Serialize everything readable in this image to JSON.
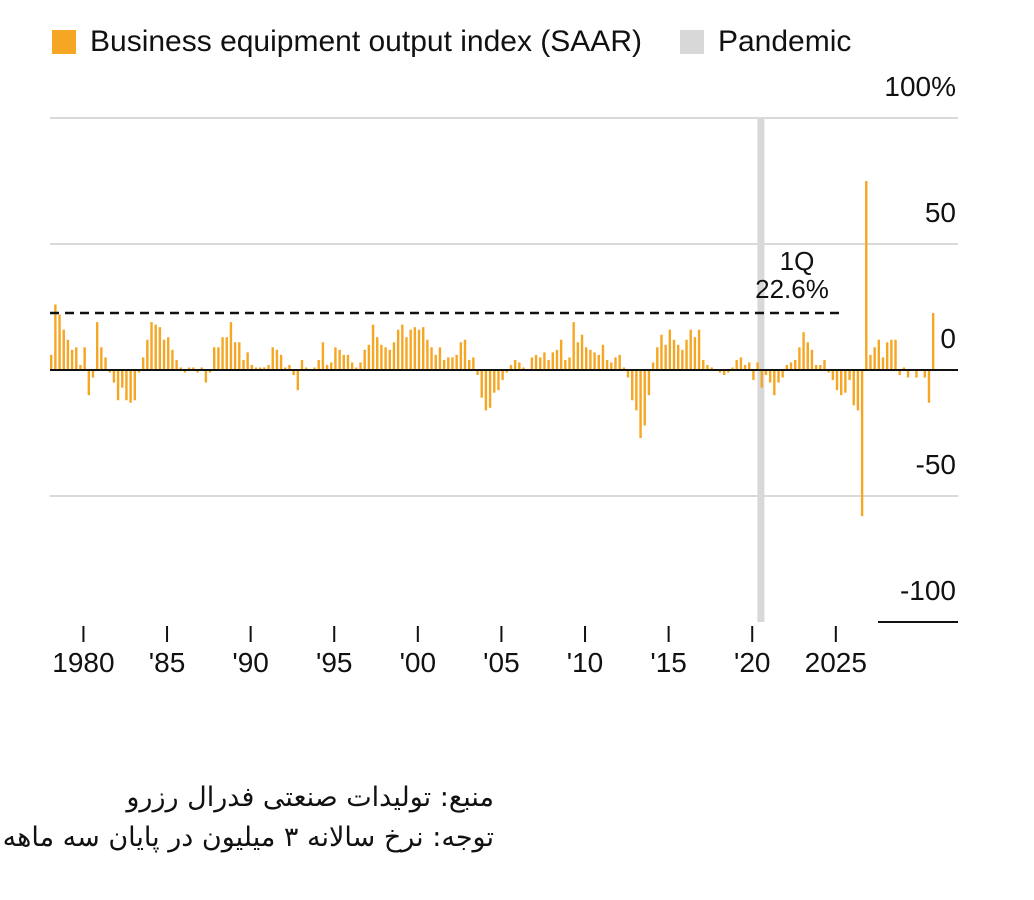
{
  "legend": {
    "series_label": "Business equipment output index (SAAR)",
    "pandemic_label": "Pandemic"
  },
  "colors": {
    "series": "#F5A623",
    "pandemic": "#D8D8D8",
    "grid": "#D9D9D9",
    "axis": "#111111"
  },
  "annotation": {
    "line1": "1Q",
    "line2": "22.6%"
  },
  "notes": {
    "source": "منبع: تولیدات صنعتی فدرال رزرو",
    "note": "توجه: نرخ سالانه ۳ میلیون در پایان سه ماهه"
  },
  "chart_data": {
    "type": "bar",
    "x_axis": {
      "min": 1978,
      "max": 2025.25,
      "ticks": [
        1980,
        1985,
        1990,
        1995,
        2000,
        2005,
        2010,
        2015,
        2020,
        2025
      ],
      "tick_labels": [
        "1980",
        "'85",
        "'90",
        "'95",
        "'00",
        "'05",
        "'10",
        "'15",
        "'20",
        "2025"
      ]
    },
    "y_axis": {
      "ylim": [
        -100,
        100
      ],
      "ticks": [
        100,
        50,
        0,
        -50,
        -100
      ],
      "tick_labels": [
        "100%",
        "50",
        "0",
        "-50",
        "-100"
      ]
    },
    "grid": true,
    "legend_position": "top-left",
    "reference_line": {
      "value": 22.6,
      "style": "dashed"
    },
    "pandemic_shading": {
      "start": 2020.25,
      "end": 2020.5
    },
    "series": [
      {
        "name": "Business equipment output index (SAAR)",
        "start": 1978.0,
        "step": 0.25,
        "values": [
          6,
          26,
          22,
          16,
          12,
          8,
          9,
          2,
          9,
          -10,
          -3,
          19,
          9,
          5,
          -1,
          -5,
          -12,
          -7,
          -12,
          -13,
          -12,
          -1,
          5,
          12,
          19,
          18,
          17,
          12,
          13,
          8,
          4,
          1,
          -1,
          1,
          1,
          -1,
          1,
          -5,
          -1,
          9,
          9,
          13,
          13,
          19,
          11,
          11,
          4,
          7,
          2,
          1,
          1,
          1,
          2,
          9,
          8,
          6,
          1,
          2,
          -2,
          -8,
          4,
          1,
          0,
          1,
          4,
          11,
          2,
          3,
          9,
          8,
          6,
          6,
          3,
          1,
          3,
          8,
          10,
          18,
          13,
          10,
          9,
          8,
          11,
          16,
          18,
          13,
          16,
          17,
          16,
          17,
          12,
          9,
          6,
          9,
          4,
          5,
          5,
          6,
          11,
          12,
          4,
          5,
          -2,
          -11,
          -16,
          -15,
          -9,
          -8,
          -4,
          -1,
          2,
          4,
          3,
          1,
          0,
          5,
          6,
          5,
          7,
          4,
          7,
          8,
          12,
          4,
          5,
          19,
          11,
          14,
          9,
          8,
          7,
          6,
          10,
          4,
          3,
          5,
          6,
          1,
          -3,
          -12,
          -16,
          -27,
          -22,
          -10,
          3,
          9,
          14,
          10,
          16,
          12,
          10,
          8,
          12,
          16,
          13,
          16,
          4,
          2,
          1,
          0,
          -1,
          -2,
          -1,
          1,
          4,
          5,
          2,
          3,
          -4,
          3,
          -7,
          -2,
          -5,
          -10,
          -5,
          -3,
          2,
          3,
          4,
          9,
          15,
          11,
          8,
          2,
          2,
          4,
          -1,
          -4,
          -8,
          -10,
          -9,
          -4,
          -14,
          -16,
          -58,
          75,
          6,
          9,
          12,
          5,
          11,
          12,
          12,
          -2,
          1,
          -3,
          0,
          -3,
          0,
          -3,
          -13,
          22.6
        ]
      }
    ]
  }
}
